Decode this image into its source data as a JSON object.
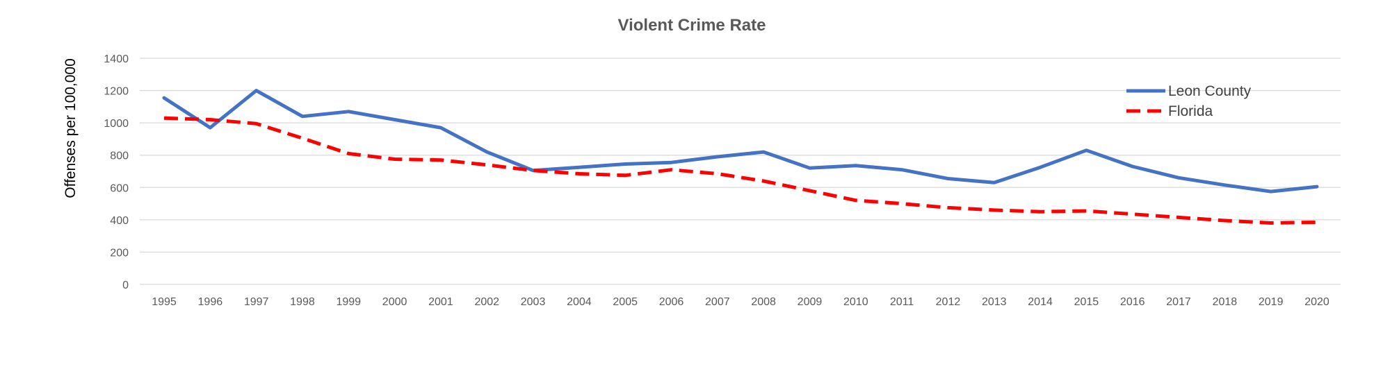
{
  "chart_data": {
    "type": "line",
    "title": "Violent Crime Rate",
    "xlabel": "",
    "ylabel": "Offenses per 100,000",
    "x": [
      "1995",
      "1996",
      "1997",
      "1998",
      "1999",
      "2000",
      "2001",
      "2002",
      "2003",
      "2004",
      "2005",
      "2006",
      "2007",
      "2008",
      "2009",
      "2010",
      "2011",
      "2012",
      "2013",
      "2014",
      "2015",
      "2016",
      "2017",
      "2018",
      "2019",
      "2020"
    ],
    "ylim": [
      0,
      1400
    ],
    "yticks": [
      0,
      200,
      400,
      600,
      800,
      1000,
      1200,
      1400
    ],
    "yticklabels": [
      "0",
      "200",
      "400",
      "600",
      "800",
      "1000",
      "1200",
      "1400"
    ],
    "grid": true,
    "legend_position": "top-right",
    "series": [
      {
        "name": "Leon County",
        "color": "#4472C4",
        "style": "solid",
        "values": [
          1155,
          970,
          1200,
          1040,
          1070,
          1020,
          970,
          820,
          705,
          725,
          745,
          755,
          790,
          820,
          720,
          735,
          710,
          655,
          630,
          725,
          830,
          730,
          660,
          615,
          575,
          605
        ]
      },
      {
        "name": "Florida",
        "color": "#FF0000",
        "style": "dashed",
        "values": [
          1030,
          1020,
          995,
          905,
          810,
          775,
          770,
          740,
          705,
          685,
          675,
          710,
          685,
          640,
          580,
          520,
          500,
          475,
          460,
          450,
          455,
          435,
          415,
          395,
          380,
          385
        ]
      }
    ]
  }
}
